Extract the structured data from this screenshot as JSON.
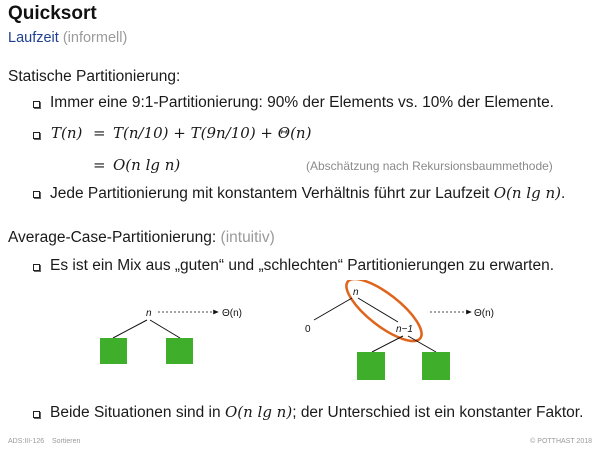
{
  "slide": {
    "title": "Quicksort",
    "subtitle_main": "Laufzeit",
    "subtitle_aside": "(informell)"
  },
  "section1": {
    "heading": "Statische Partitionierung:",
    "bullet1": "Immer eine 9:1-Partitionierung: 90% der Elements vs. 10% der Elemente.",
    "eq1_lhs": "T(n)",
    "eq1_eq": "=",
    "eq1_rhs": "T(n/10) + T(9n/10) + Θ(n)",
    "eq2_eq": "=",
    "eq2_rhs": "O(n lg n)",
    "eq2_note": "(Abschätzung nach Rekursionsbaummethode)",
    "bullet3_text": "Jede Partitionierung mit konstantem Verhältnis führt zur Laufzeit",
    "bullet3_math": "O(n lg n)",
    "bullet3_end": "."
  },
  "section2": {
    "heading": "Average-Case-Partitionierung:",
    "heading_aside": "(intuitiv)",
    "bullet1": "Es ist ein Mix aus „guten“ und „schlechten“ Partitionierungen zu erwarten.",
    "bullet2_pre": "Beide Situationen sind in",
    "bullet2_math": "O(n lg n)",
    "bullet2_post": "; der Unterschied ist ein konstanter Faktor."
  },
  "diagram": {
    "left_node": "n",
    "left_cost": "Θ(n)",
    "right_root": "n",
    "right_zero": "0",
    "right_child": "n−1",
    "right_cost": "Θ(n)",
    "box_color": "#3fae2a",
    "ellipse_color": "#e0651c"
  },
  "footer": {
    "left": "ADS:III-126",
    "section": "Sortieren",
    "right": "© POTTHAST 2018"
  }
}
